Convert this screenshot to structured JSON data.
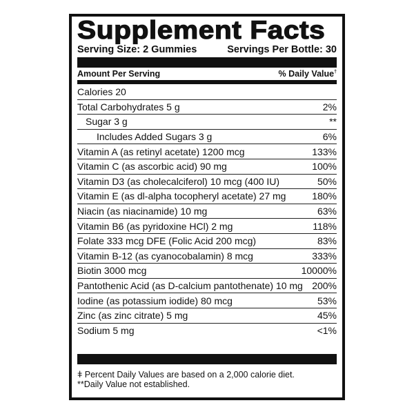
{
  "title": "Supplement Facts",
  "serving_size": "Serving Size: 2 Gummies",
  "servings_per": "Servings Per Bottle: 30",
  "amount_header": "Amount Per Serving",
  "dv_header": "% Daily Value",
  "dv_mark": "†",
  "rows": [
    {
      "name": "Calories 20",
      "dv": ""
    },
    {
      "name": "Total Carbohydrates 5 g",
      "dv": "2%"
    },
    {
      "name": "Sugar 3 g",
      "dv": "**"
    },
    {
      "name": "Includes Added Sugars 3 g",
      "dv": "6%"
    },
    {
      "name": "Vitamin A (as retinyl acetate) 1200 mcg",
      "dv": "133%"
    },
    {
      "name": "Vitamin C (as ascorbic acid) 90 mg",
      "dv": "100%"
    },
    {
      "name": "Vitamin D3 (as cholecalciferol) 10 mcg (400 IU)",
      "dv": "50%"
    },
    {
      "name": "Vitamin E (as dl-alpha tocopheryl acetate) 27 mg",
      "dv": "180%"
    },
    {
      "name": "Niacin (as niacinamide) 10 mg",
      "dv": "63%"
    },
    {
      "name": "Vitamin B6 (as pyridoxine HCl) 2 mg",
      "dv": "118%"
    },
    {
      "name": "Folate 333 mcg DFE (Folic Acid 200 mcg)",
      "dv": "83%"
    },
    {
      "name": "Vitamin B-12 (as cyanocobalamin) 8 mcg",
      "dv": "333%"
    },
    {
      "name": "Biotin 3000 mcg",
      "dv": "10000%"
    },
    {
      "name": "Pantothenic Acid (as D-calcium pantothenate) 10 mg",
      "dv": "200%"
    },
    {
      "name": "Iodine (as potassium iodide) 80 mcg",
      "dv": "53%"
    },
    {
      "name": "Zinc (as zinc citrate) 5 mg",
      "dv": "45%"
    },
    {
      "name": "Sodium 5 mg",
      "dv": "<1%"
    }
  ],
  "footnotes": [
    "ǂ Percent Daily Values are based on a 2,000 calorie diet.",
    "**Daily Value not established."
  ]
}
